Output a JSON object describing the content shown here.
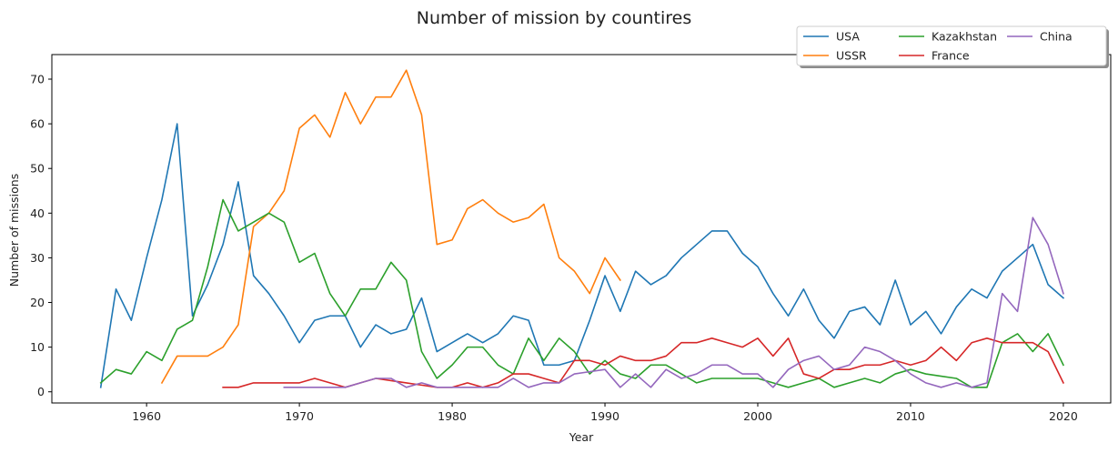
{
  "chart_data": {
    "type": "line",
    "title": "Number of mission by countires",
    "xlabel": "Year",
    "ylabel": "Number of missions",
    "xlim": [
      1953.8,
      2023.1
    ],
    "ylim": [
      -2.5,
      75.5
    ],
    "xticks": [
      1960,
      1970,
      1980,
      1990,
      2000,
      2010,
      2020
    ],
    "yticks": [
      0,
      10,
      20,
      30,
      40,
      50,
      60,
      70
    ],
    "grid": false,
    "legend_position": "top-right",
    "series": [
      {
        "name": "USA",
        "color": "#1f77b4",
        "x": [
          1957,
          1958,
          1959,
          1960,
          1961,
          1962,
          1963,
          1964,
          1965,
          1966,
          1967,
          1968,
          1969,
          1970,
          1971,
          1972,
          1973,
          1974,
          1975,
          1976,
          1977,
          1978,
          1979,
          1980,
          1981,
          1982,
          1983,
          1984,
          1985,
          1986,
          1987,
          1988,
          1989,
          1990,
          1991,
          1992,
          1993,
          1994,
          1995,
          1996,
          1997,
          1998,
          1999,
          2000,
          2001,
          2002,
          2003,
          2004,
          2005,
          2006,
          2007,
          2008,
          2009,
          2010,
          2011,
          2012,
          2013,
          2014,
          2015,
          2016,
          2017,
          2018,
          2019,
          2020
        ],
        "y": [
          1,
          23,
          16,
          30,
          43,
          60,
          17,
          24,
          33,
          47,
          26,
          22,
          17,
          11,
          16,
          17,
          17,
          10,
          15,
          13,
          14,
          21,
          9,
          11,
          13,
          11,
          13,
          17,
          16,
          6,
          6,
          7,
          16,
          26,
          18,
          27,
          24,
          26,
          30,
          33,
          36,
          36,
          31,
          28,
          22,
          17,
          23,
          16,
          12,
          18,
          19,
          15,
          25,
          15,
          18,
          13,
          19,
          23,
          21,
          27,
          30,
          33,
          24,
          21
        ]
      },
      {
        "name": "USSR",
        "color": "#ff7f0e",
        "x": [
          1961,
          1962,
          1963,
          1964,
          1965,
          1966,
          1967,
          1968,
          1969,
          1970,
          1971,
          1972,
          1973,
          1974,
          1975,
          1976,
          1977,
          1978,
          1979,
          1980,
          1981,
          1982,
          1983,
          1984,
          1985,
          1986,
          1987,
          1988,
          1989,
          1990,
          1991
        ],
        "y": [
          2,
          8,
          8,
          8,
          10,
          15,
          37,
          40,
          45,
          59,
          62,
          57,
          67,
          60,
          66,
          66,
          72,
          62,
          33,
          34,
          41,
          43,
          40,
          38,
          39,
          42,
          30,
          27,
          22,
          30,
          25
        ]
      },
      {
        "name": "Kazakhstan",
        "color": "#2ca02c",
        "x": [
          1957,
          1958,
          1959,
          1960,
          1961,
          1962,
          1963,
          1964,
          1965,
          1966,
          1967,
          1968,
          1969,
          1970,
          1971,
          1972,
          1973,
          1974,
          1975,
          1976,
          1977,
          1978,
          1979,
          1980,
          1981,
          1982,
          1983,
          1984,
          1985,
          1986,
          1987,
          1988,
          1989,
          1990,
          1991,
          1992,
          1993,
          1994,
          1995,
          1996,
          1997,
          1998,
          1999,
          2000,
          2001,
          2002,
          2003,
          2004,
          2005,
          2006,
          2007,
          2008,
          2009,
          2010,
          2011,
          2012,
          2013,
          2014,
          2015,
          2016,
          2017,
          2018,
          2019,
          2020
        ],
        "y": [
          2,
          5,
          4,
          9,
          7,
          14,
          16,
          28,
          43,
          36,
          38,
          40,
          38,
          29,
          31,
          22,
          17,
          23,
          23,
          29,
          25,
          9,
          3,
          6,
          10,
          10,
          6,
          4,
          12,
          7,
          12,
          9,
          4,
          7,
          4,
          3,
          6,
          6,
          4,
          2,
          3,
          3,
          3,
          3,
          2,
          1,
          2,
          3,
          1,
          2,
          3,
          2,
          4,
          5,
          4,
          3.5,
          3,
          1,
          1,
          11,
          13,
          9,
          13,
          6
        ]
      },
      {
        "name": "France",
        "color": "#d62728",
        "x": [
          1965,
          1966,
          1967,
          1968,
          1969,
          1970,
          1971,
          1972,
          1973,
          1974,
          1975,
          1976,
          1977,
          1978,
          1979,
          1980,
          1981,
          1982,
          1983,
          1984,
          1985,
          1986,
          1987,
          1988,
          1989,
          1990,
          1991,
          1992,
          1993,
          1994,
          1995,
          1996,
          1997,
          1998,
          1999,
          2000,
          2001,
          2002,
          2003,
          2004,
          2005,
          2006,
          2007,
          2008,
          2009,
          2010,
          2011,
          2012,
          2013,
          2014,
          2015,
          2016,
          2017,
          2018,
          2019,
          2020
        ],
        "y": [
          1,
          1,
          2,
          2,
          2,
          2,
          3,
          2,
          1,
          2,
          3,
          2.5,
          2,
          1.5,
          1,
          1,
          2,
          1,
          2,
          4,
          4,
          3,
          2,
          7,
          7,
          6,
          8,
          7,
          7,
          8,
          11,
          11,
          12,
          11,
          10,
          12,
          8,
          12,
          4,
          3,
          5,
          5,
          6,
          6,
          7,
          6,
          7,
          10,
          7,
          11,
          12,
          11,
          11,
          11,
          9,
          2
        ]
      },
      {
        "name": "China",
        "color": "#9467bd",
        "x": [
          1969,
          1970,
          1971,
          1972,
          1973,
          1974,
          1975,
          1976,
          1977,
          1978,
          1979,
          1980,
          1981,
          1982,
          1983,
          1984,
          1985,
          1986,
          1987,
          1988,
          1989,
          1990,
          1991,
          1992,
          1993,
          1994,
          1995,
          1996,
          1997,
          1998,
          1999,
          2000,
          2001,
          2002,
          2003,
          2004,
          2005,
          2006,
          2007,
          2008,
          2009,
          2010,
          2011,
          2012,
          2013,
          2014,
          2015,
          2016,
          2017,
          2018,
          2019,
          2020
        ],
        "y": [
          1,
          1,
          1,
          1,
          1,
          2,
          3,
          3,
          1,
          2,
          1,
          1,
          1,
          1,
          1,
          3,
          1,
          2,
          2,
          4,
          4.5,
          5,
          1,
          4,
          1,
          5,
          3,
          4,
          6,
          6,
          4,
          4,
          1,
          5,
          7,
          8,
          5,
          6,
          10,
          9,
          7,
          4,
          2,
          1,
          2,
          1,
          2,
          22,
          18,
          39,
          33,
          22
        ]
      }
    ]
  }
}
